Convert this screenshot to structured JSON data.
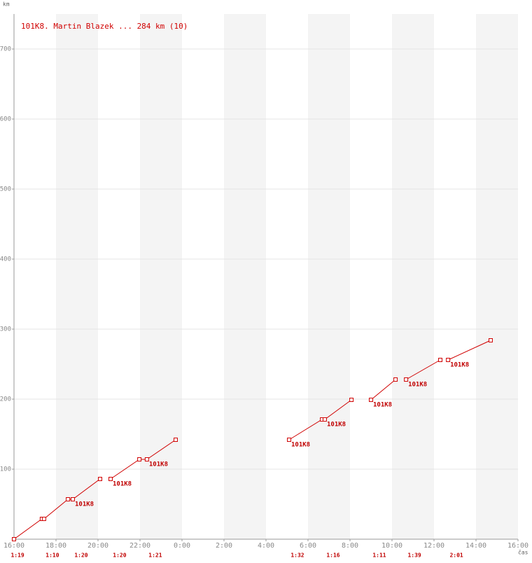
{
  "chart_data": {
    "type": "line",
    "title": "101K8. Martin Blazek ... 284 km (10)",
    "y_label": "km",
    "x_label": "čas",
    "xlim": [
      0,
      24
    ],
    "ylim": [
      0,
      750
    ],
    "xticks": [
      {
        "value": 0,
        "label": "16:00"
      },
      {
        "value": 2,
        "label": "18:00"
      },
      {
        "value": 4,
        "label": "20:00"
      },
      {
        "value": 6,
        "label": "22:00"
      },
      {
        "value": 8,
        "label": "0:00"
      },
      {
        "value": 10,
        "label": "2:00"
      },
      {
        "value": 12,
        "label": "4:00"
      },
      {
        "value": 14,
        "label": "6:00"
      },
      {
        "value": 16,
        "label": "8:00"
      },
      {
        "value": 18,
        "label": "10:00"
      },
      {
        "value": 20,
        "label": "12:00"
      },
      {
        "value": 22,
        "label": "14:00"
      },
      {
        "value": 24,
        "label": "16:00"
      }
    ],
    "yticks": [
      100,
      200,
      300,
      400,
      500,
      600,
      700
    ],
    "grid": true,
    "shaded_bands": true,
    "series": [
      {
        "name": "101K8",
        "color": "#d00000",
        "x": [
          0,
          1.33,
          1.43,
          2.57,
          2.8,
          4.1,
          null,
          4.6,
          5.97,
          6.33,
          7.7,
          null,
          13.1,
          14.67,
          14.8,
          16.07,
          null,
          17,
          18.17,
          null,
          18.67,
          20.3,
          null,
          20.67,
          22.7
        ],
        "values": [
          0,
          29,
          29,
          57,
          57,
          86,
          null,
          86,
          114,
          114,
          142,
          null,
          142,
          171,
          171,
          199,
          null,
          199,
          228,
          null,
          228,
          256,
          null,
          256,
          284
        ],
        "point_labels": [
          null,
          null,
          null,
          null,
          "101K8",
          null,
          null,
          "101K8",
          null,
          "101K8",
          null,
          null,
          "101K8",
          null,
          "101K8",
          null,
          null,
          "101K8",
          null,
          null,
          "101K8",
          null,
          null,
          "101K8",
          null
        ]
      }
    ],
    "lap_times": [
      {
        "x": 0.17,
        "label": "1:19"
      },
      {
        "x": 1.83,
        "label": "1:10"
      },
      {
        "x": 3.2,
        "label": "1:20"
      },
      {
        "x": 5.03,
        "label": "1:20"
      },
      {
        "x": 6.73,
        "label": "1:21"
      },
      {
        "x": 13.5,
        "label": "1:32"
      },
      {
        "x": 15.2,
        "label": "1:16"
      },
      {
        "x": 17.4,
        "label": "1:11"
      },
      {
        "x": 19.07,
        "label": "1:39"
      },
      {
        "x": 21.07,
        "label": "2:01"
      }
    ]
  }
}
